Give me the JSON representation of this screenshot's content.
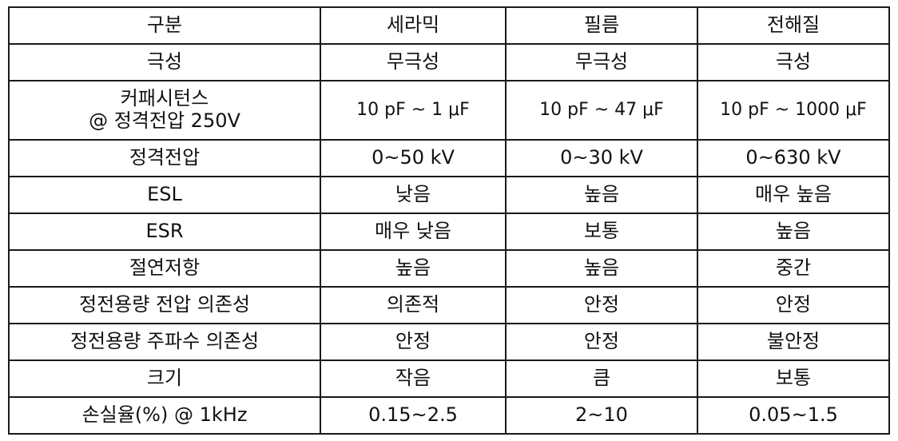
{
  "table": {
    "headers": [
      "구분",
      "세라믹",
      "필름",
      "전해질"
    ],
    "rows": [
      {
        "label": [
          "극성"
        ],
        "values": [
          "무극성",
          "무극성",
          "극성"
        ]
      },
      {
        "label": [
          "커패시턴스",
          "@ 정격전압 250V"
        ],
        "values": [
          "10 pF ~ 1 μF",
          "10 pF ~ 47 μF",
          "10 pF ~ 1000 μF"
        ]
      },
      {
        "label": [
          "정격전압"
        ],
        "values": [
          "0~50 kV",
          "0~30 kV",
          "0~630 kV"
        ]
      },
      {
        "label": [
          "ESL"
        ],
        "values": [
          "낮음",
          "높음",
          "매우 높음"
        ]
      },
      {
        "label": [
          "ESR"
        ],
        "values": [
          "매우 낮음",
          "보통",
          "높음"
        ]
      },
      {
        "label": [
          "절연저항"
        ],
        "values": [
          "높음",
          "높음",
          "중간"
        ]
      },
      {
        "label": [
          "정전용량 전압 의존성"
        ],
        "values": [
          "의존적",
          "안정",
          "안정"
        ]
      },
      {
        "label": [
          "정전용량 주파수 의존성"
        ],
        "values": [
          "안정",
          "안정",
          "불안정"
        ]
      },
      {
        "label": [
          "크기"
        ],
        "values": [
          "작음",
          "큼",
          "보통"
        ]
      },
      {
        "label": [
          "손실율(%) @ 1kHz"
        ],
        "values": [
          "0.15~2.5",
          "2~10",
          "0.05~1.5"
        ]
      }
    ]
  }
}
